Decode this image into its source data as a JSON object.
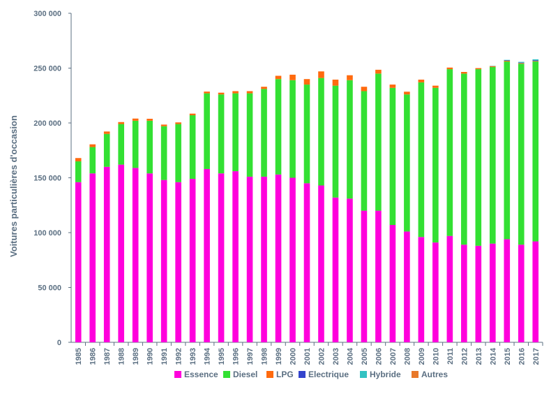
{
  "chart_data": {
    "type": "bar",
    "stacked": true,
    "ylabel": "Voitures particulières d'occasion",
    "xlabel": "",
    "ylim": [
      0,
      300000
    ],
    "yticks": [
      0,
      50000,
      100000,
      150000,
      200000,
      250000,
      300000
    ],
    "ytick_labels": [
      "0",
      "50 000",
      "100 000",
      "150 000",
      "200 000",
      "250 000",
      "300 000"
    ],
    "grid": false,
    "legend_position": "bottom",
    "categories": [
      "1985",
      "1986",
      "1987",
      "1988",
      "1989",
      "1990",
      "1991",
      "1992",
      "1993",
      "1994",
      "1995",
      "1996",
      "1997",
      "1998",
      "1999",
      "2000",
      "2001",
      "2002",
      "2003",
      "2004",
      "2005",
      "2006",
      "2007",
      "2008",
      "2009",
      "2010",
      "2011",
      "2012",
      "2013",
      "2014",
      "2015",
      "2016",
      "2017"
    ],
    "series": [
      {
        "name": "Essence",
        "color": "#ff00dc",
        "values": [
          146000,
          154000,
          160000,
          162000,
          159000,
          154000,
          148000,
          146000,
          149000,
          158000,
          154000,
          156000,
          151000,
          151000,
          153000,
          150000,
          145000,
          143000,
          132000,
          131000,
          120000,
          120000,
          107000,
          101000,
          96000,
          91000,
          97000,
          89000,
          88000,
          90000,
          94000,
          89000,
          92000
        ]
      },
      {
        "name": "Diesel",
        "color": "#33e033",
        "values": [
          19000,
          24000,
          30000,
          37000,
          43000,
          48000,
          49000,
          53000,
          58000,
          69000,
          72000,
          71000,
          76000,
          80000,
          87000,
          89000,
          90000,
          98000,
          102000,
          108000,
          109000,
          125000,
          125000,
          125000,
          141000,
          141000,
          152000,
          156000,
          161000,
          161000,
          162000,
          165000,
          164000
        ]
      },
      {
        "name": "LPG",
        "color": "#ff6a0e",
        "values": [
          3000,
          2500,
          2200,
          1800,
          2000,
          1800,
          1500,
          1500,
          1500,
          1600,
          1600,
          2000,
          2000,
          2000,
          3000,
          5000,
          5000,
          6000,
          5500,
          4500,
          4000,
          3500,
          3000,
          2500,
          2500,
          2000,
          1500,
          1500,
          1000,
          800,
          700,
          600,
          500
        ]
      },
      {
        "name": "Electrique",
        "color": "#3344cc",
        "values": [
          0,
          0,
          0,
          0,
          0,
          0,
          0,
          0,
          0,
          0,
          0,
          0,
          0,
          0,
          0,
          0,
          0,
          0,
          0,
          0,
          0,
          0,
          0,
          0,
          0,
          0,
          0,
          0,
          0,
          0,
          300,
          400,
          500
        ]
      },
      {
        "name": "Hybride",
        "color": "#33c2c2",
        "values": [
          0,
          0,
          0,
          0,
          0,
          0,
          0,
          0,
          0,
          0,
          0,
          0,
          0,
          0,
          0,
          0,
          0,
          0,
          0,
          0,
          0,
          0,
          0,
          0,
          0,
          0,
          0,
          0,
          0,
          300,
          500,
          700,
          1000
        ]
      },
      {
        "name": "Autres",
        "color": "#e8782a",
        "values": [
          0,
          0,
          0,
          0,
          0,
          0,
          0,
          0,
          0,
          0,
          0,
          0,
          0,
          0,
          0,
          0,
          0,
          0,
          0,
          0,
          0,
          0,
          0,
          0,
          0,
          0,
          0,
          0,
          0,
          0,
          0,
          0,
          0
        ]
      }
    ]
  }
}
